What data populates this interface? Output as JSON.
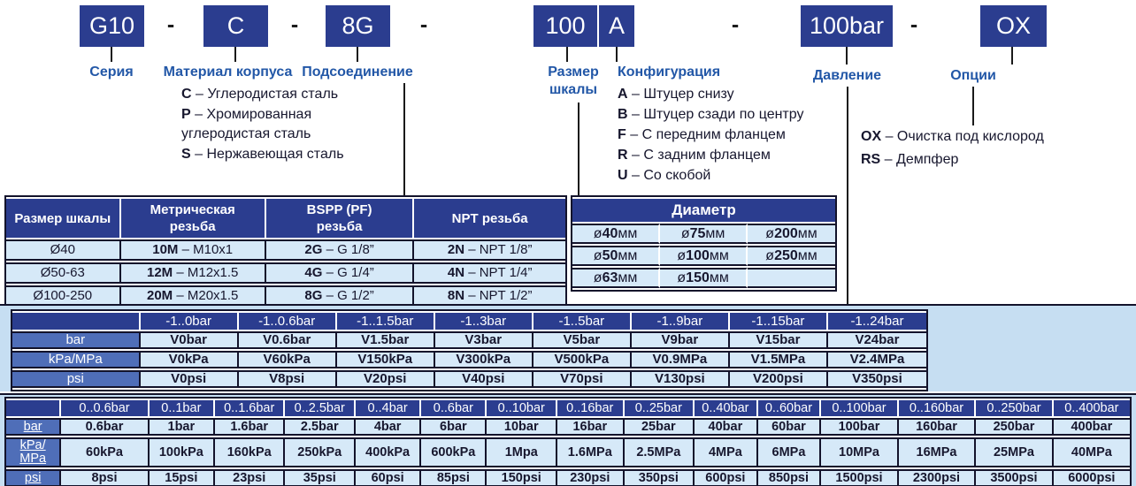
{
  "colors": {
    "navy": "#2b3d8f",
    "label_blue": "#2257a7",
    "mid_blue": "#4f6eb8",
    "cell_blue": "#d6e9f8",
    "band_blue": "#c6def2"
  },
  "code_line": {
    "separator": "-",
    "item_separator": " – ",
    "boxes": [
      {
        "id": "series",
        "code": "G10"
      },
      {
        "id": "material",
        "code": "C"
      },
      {
        "id": "connection",
        "code": "8G"
      },
      {
        "id": "dial-size",
        "code": "100"
      },
      {
        "id": "configuration",
        "code": "A"
      },
      {
        "id": "pressure",
        "code": "100bar"
      },
      {
        "id": "options",
        "code": "OX"
      }
    ]
  },
  "legend": {
    "series_label": "Серия",
    "material_label": "Материал корпуса",
    "material_items": [
      {
        "code": "C",
        "desc": "Углеродистая сталь"
      },
      {
        "code": "P",
        "desc": "Хромированная углеродистая сталь"
      },
      {
        "code": "S",
        "desc": "Нержавеющая сталь"
      }
    ],
    "connection_label": "Подсоединение",
    "dial_label": "Размер шкалы",
    "config_label": "Конфигурация",
    "config_items": [
      {
        "code": "A",
        "desc": "Штуцер снизу"
      },
      {
        "code": "B",
        "desc": "Штуцер сзади по центру"
      },
      {
        "code": "F",
        "desc": "С передним фланцем"
      },
      {
        "code": "R",
        "desc": "С задним фланцем"
      },
      {
        "code": "U",
        "desc": "Со скобой"
      }
    ],
    "pressure_label": "Давление",
    "options_label": "Опции",
    "options_items": [
      {
        "code": "OX",
        "desc": "Очистка под кислород"
      },
      {
        "code": "RS",
        "desc": "Демпфер"
      }
    ]
  },
  "thread_table": {
    "headers": [
      "Размер шкалы",
      "Метрическая резьба",
      "BSPP (PF) резьба",
      "NPT резьба"
    ],
    "rows": [
      {
        "size": "Ø40",
        "cells": [
          {
            "code": "10M",
            "desc": "M10x1"
          },
          {
            "code": "2G",
            "desc": "G 1/8”"
          },
          {
            "code": "2N",
            "desc": "NPT 1/8”"
          }
        ]
      },
      {
        "size": "Ø50-63",
        "cells": [
          {
            "code": "12M",
            "desc": "M12x1.5"
          },
          {
            "code": "4G",
            "desc": "G 1/4”"
          },
          {
            "code": "4N",
            "desc": "NPT 1/4”"
          }
        ]
      },
      {
        "size": "Ø100-250",
        "cells": [
          {
            "code": "20M",
            "desc": "M20x1.5"
          },
          {
            "code": "8G",
            "desc": "G 1/2”"
          },
          {
            "code": "8N",
            "desc": "NPT 1/2”"
          }
        ]
      }
    ]
  },
  "diameter_table": {
    "title": "Диаметр",
    "prefix": "ø",
    "suffix": "мм",
    "rows": [
      [
        "40",
        "75",
        "200"
      ],
      [
        "50",
        "100",
        "250"
      ],
      [
        "63",
        "150",
        null
      ]
    ]
  },
  "vacuum_table": {
    "ranges": [
      "-1..0bar",
      "-1..0.6bar",
      "-1..1.5bar",
      "-1..3bar",
      "-1..5bar",
      "-1..9bar",
      "-1..15bar",
      "-1..24bar"
    ],
    "rows": [
      {
        "label": "bar",
        "values": [
          "V0bar",
          "V0.6bar",
          "V1.5bar",
          "V3bar",
          "V5bar",
          "V9bar",
          "V15bar",
          "V24bar"
        ]
      },
      {
        "label": "kPa/MPa",
        "values": [
          "V0kPa",
          "V60kPa",
          "V150kPa",
          "V300kPa",
          "V500kPa",
          "V0.9MPa",
          "V1.5MPa",
          "V2.4MPa"
        ]
      },
      {
        "label": "psi",
        "values": [
          "V0psi",
          "V8psi",
          "V20psi",
          "V40psi",
          "V70psi",
          "V130psi",
          "V200psi",
          "V350psi"
        ]
      }
    ]
  },
  "pressure_table": {
    "ranges": [
      "0..0.6bar",
      "0..1bar",
      "0..1.6bar",
      "0..2.5bar",
      "0..4bar",
      "0..6bar",
      "0..10bar",
      "0..16bar",
      "0..25bar",
      "0..40bar",
      "0..60bar",
      "0..100bar",
      "0..160bar",
      "0..250bar",
      "0..400bar"
    ],
    "rows": [
      {
        "label": "bar",
        "values": [
          "0.6bar",
          "1bar",
          "1.6bar",
          "2.5bar",
          "4bar",
          "6bar",
          "10bar",
          "16bar",
          "25bar",
          "40bar",
          "60bar",
          "100bar",
          "160bar",
          "250bar",
          "400bar"
        ]
      },
      {
        "label": "kPa/ MPa",
        "values": [
          "60kPa",
          "100kPa",
          "160kPa",
          "250kPa",
          "400kPa",
          "600kPa",
          "1Mpa",
          "1.6MPa",
          "2.5MPa",
          "4MPa",
          "6MPa",
          "10MPa",
          "16MPa",
          "25MPa",
          "40MPa"
        ]
      },
      {
        "label": "psi",
        "values": [
          "8psi",
          "15psi",
          "23psi",
          "35psi",
          "60psi",
          "85psi",
          "150psi",
          "230psi",
          "350psi",
          "600psi",
          "850psi",
          "1500psi",
          "2300psi",
          "3500psi",
          "6000psi"
        ]
      }
    ]
  }
}
